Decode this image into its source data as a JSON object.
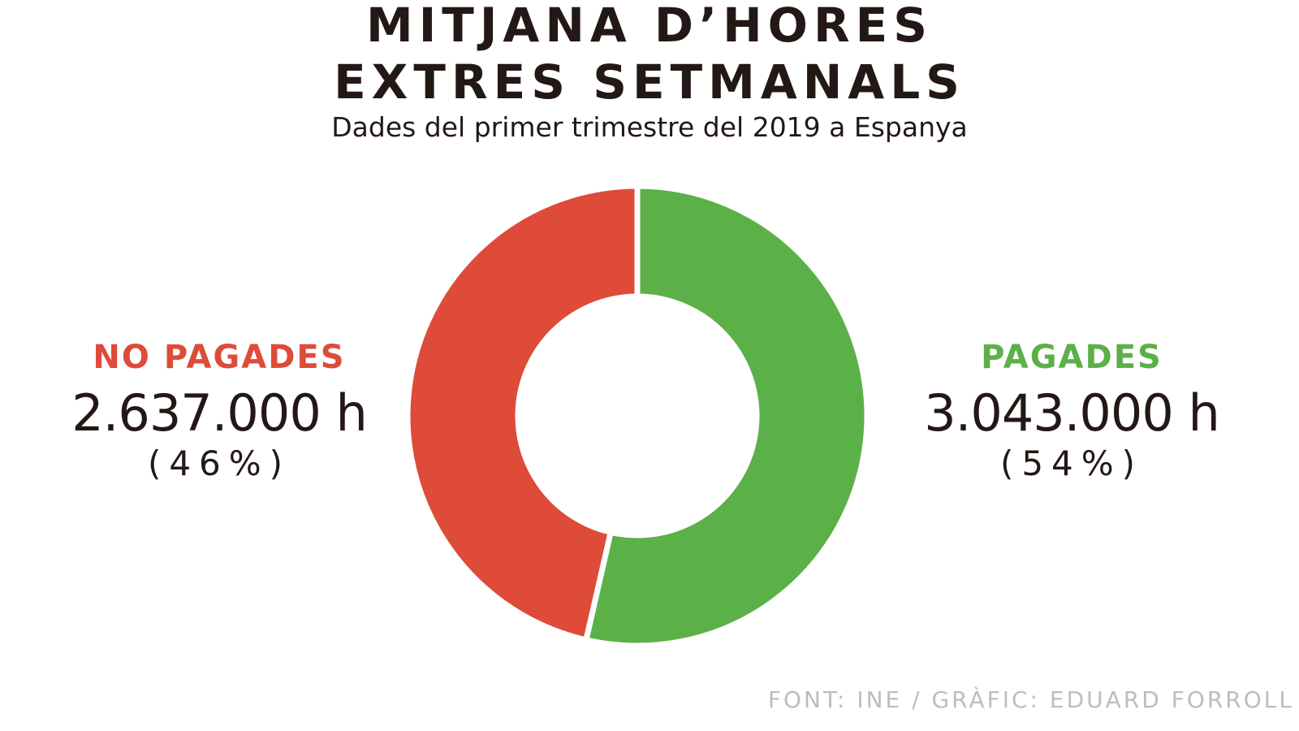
{
  "title_line1": "MITJANA D’HORES",
  "title_line2": "EXTRES SETMANALS",
  "subtitle": "Dades del primer trimestre del 2019 a Espanya",
  "source": "FONT: INE / GRÀFIC: EDUARD FORROLL",
  "chart_data": {
    "type": "pie",
    "title": "MITJANA D’HORES EXTRES SETMANALS",
    "subtitle": "Dades del primer trimestre del 2019 a Espanya",
    "categories": [
      "NO PAGADES",
      "PAGADES"
    ],
    "values": [
      2637000,
      3043000
    ],
    "percentages": [
      46,
      54
    ],
    "unit": "h",
    "colors": [
      "#de4b39",
      "#5cb048"
    ],
    "series": [
      {
        "name": "NO PAGADES",
        "value_text": "2.637.000 h",
        "pct_text": "(46%)",
        "color": "#de4b39"
      },
      {
        "name": "PAGADES",
        "value_text": "3.043.000 h",
        "pct_text": "(54%)",
        "color": "#5cb048"
      }
    ]
  }
}
